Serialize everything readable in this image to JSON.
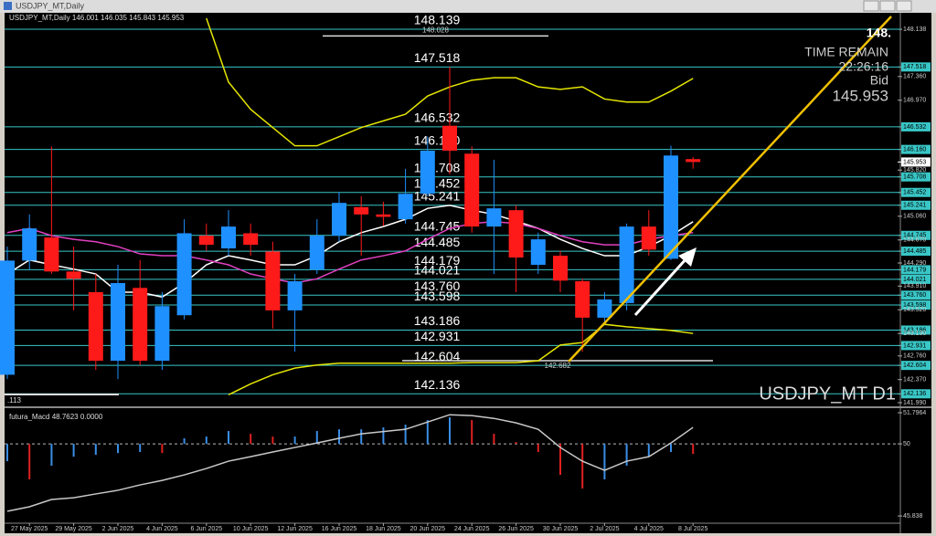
{
  "window": {
    "title": "USDJPY_MT,Daily"
  },
  "chart_data": [
    {
      "type": "candlestick",
      "title": "USDJPY_MT,Daily 146.001 146.035 145.843 145.953",
      "categories": [
        null,
        "27 May 2025",
        null,
        "29 May 2025",
        null,
        "2 Jun 2025",
        null,
        "4 Jun 2025",
        null,
        "6 Jun 2025",
        null,
        "10 Jun 2025",
        null,
        "12 Jun 2025",
        null,
        "16 Jun 2025",
        null,
        "18 Jun 2025",
        null,
        "20 Jun 2025",
        null,
        "24 Jun 2025",
        null,
        "26 Jun 2025",
        null,
        "30 Jun 2025",
        null,
        "2 Jul 2025",
        null,
        "4 Jul 2025",
        null,
        "8 Jul 2025"
      ],
      "open": [
        142.45,
        144.33,
        144.71,
        144.15,
        143.81,
        142.68,
        143.88,
        142.68,
        143.43,
        144.74,
        144.53,
        144.78,
        144.48,
        143.51,
        144.18,
        144.74,
        145.21,
        145.09,
        145.01,
        145.43,
        146.55,
        146.09,
        144.89,
        145.16,
        144.26,
        144.41,
        143.99,
        143.39,
        143.63,
        144.89,
        144.36,
        146.001
      ],
      "high": [
        144.56,
        145.09,
        146.21,
        144.56,
        144.11,
        144.26,
        144.34,
        143.81,
        145.01,
        144.94,
        145.16,
        144.94,
        144.64,
        144.11,
        145.01,
        145.46,
        145.39,
        145.3,
        145.84,
        146.37,
        147.52,
        146.21,
        145.99,
        145.24,
        144.79,
        144.49,
        144.03,
        143.81,
        144.94,
        145.16,
        146.22,
        146.035
      ],
      "low": [
        142.38,
        144.18,
        144.11,
        143.51,
        142.53,
        142.38,
        142.61,
        142.53,
        143.36,
        144.49,
        144.41,
        144.41,
        143.21,
        142.83,
        144.11,
        144.64,
        144.41,
        144.9,
        144.94,
        145.39,
        145.75,
        144.79,
        144.11,
        143.81,
        144.11,
        143.81,
        142.83,
        143.28,
        143.51,
        144.41,
        144.34,
        145.843
      ],
      "close": [
        144.33,
        144.86,
        144.15,
        144.03,
        142.68,
        143.96,
        142.68,
        143.58,
        144.78,
        144.59,
        144.89,
        144.59,
        143.51,
        143.99,
        144.74,
        145.28,
        145.09,
        145.05,
        145.43,
        146.14,
        146.14,
        144.89,
        145.19,
        144.38,
        144.68,
        144.0,
        143.39,
        143.69,
        144.89,
        144.51,
        146.06,
        145.953
      ],
      "up_color": "#1e90ff",
      "down_color": "#ff1a1a",
      "series": [
        {
          "name": "MA white",
          "color": "#ffffff",
          "values": [
            144.11,
            144.34,
            144.26,
            144.19,
            144.11,
            143.81,
            143.81,
            143.73,
            143.96,
            144.26,
            144.41,
            144.34,
            144.26,
            144.26,
            144.41,
            144.64,
            144.79,
            144.89,
            145.01,
            145.19,
            145.24,
            145.16,
            145.09,
            144.98,
            144.86,
            144.68,
            144.53,
            144.41,
            144.41,
            144.56,
            144.74,
            144.97
          ]
        },
        {
          "name": "MA magenta",
          "color": "#e040c0",
          "values": [
            144.79,
            144.86,
            144.74,
            144.68,
            144.64,
            144.56,
            144.44,
            144.41,
            144.41,
            144.34,
            144.26,
            144.11,
            144.03,
            143.96,
            144.03,
            144.19,
            144.34,
            144.41,
            144.49,
            144.68,
            144.86,
            144.94,
            144.97,
            144.94,
            144.86,
            144.74,
            144.64,
            144.59,
            144.59,
            144.68,
            144.74,
            144.79
          ]
        },
        {
          "name": "Upper band",
          "color": "#e6e600",
          "values": [
            null,
            null,
            null,
            null,
            null,
            null,
            null,
            null,
            null,
            148.32,
            147.27,
            146.82,
            146.52,
            146.22,
            146.22,
            146.37,
            146.52,
            146.63,
            146.74,
            147.04,
            147.19,
            147.3,
            147.34,
            147.34,
            147.19,
            147.15,
            147.19,
            146.99,
            146.94,
            146.94,
            147.12,
            147.33
          ]
        },
        {
          "name": "Lower band",
          "color": "#e6e600",
          "values": [
            null,
            null,
            null,
            null,
            null,
            null,
            null,
            null,
            null,
            null,
            142.12,
            142.3,
            142.45,
            142.56,
            142.61,
            142.64,
            142.64,
            142.64,
            142.64,
            142.64,
            142.64,
            142.65,
            142.65,
            142.65,
            142.68,
            142.94,
            142.98,
            143.28,
            143.24,
            143.21,
            143.18,
            143.13
          ]
        }
      ],
      "levels": [
        148.139,
        147.518,
        146.532,
        {
          "value": 146.16,
          "label": "146.160"
        },
        145.708,
        145.452,
        145.241,
        144.745,
        144.485,
        144.179,
        144.021,
        {
          "value": 143.76,
          "label": "143.760"
        },
        143.598,
        143.186,
        142.931,
        142.604,
        142.136
      ],
      "level_color": "#39c6c6",
      "hlines": [
        148.028,
        142.682
      ],
      "last": 145.953,
      "ylim": [
        141.93,
        148.35
      ],
      "yticks": [
        148.138,
        147.518,
        {
          "value": 147.36,
          "label": "147.360"
        },
        {
          "value": 146.97,
          "label": "146.970"
        },
        146.532,
        {
          "value": 146.16,
          "label": "146.160"
        },
        {
          "value": 145.82,
          "label": "145.820"
        },
        145.708,
        145.452,
        145.241,
        {
          "value": 145.06,
          "label": "145.060"
        },
        144.745,
        {
          "value": 144.67,
          "label": "144.670"
        },
        144.485,
        {
          "value": 144.29,
          "label": "144.290"
        },
        144.179,
        144.021,
        {
          "value": 143.91,
          "label": "143.910"
        },
        {
          "value": 143.76,
          "label": "143.760"
        },
        143.598,
        {
          "value": 143.52,
          "label": "143.520"
        },
        143.186,
        {
          "value": 143.13,
          "label": "143.130"
        },
        142.931,
        {
          "value": 142.76,
          "label": "142.760"
        },
        142.604,
        {
          "value": 142.37,
          "label": "142.370"
        },
        142.136,
        {
          "value": 141.99,
          "label": "141.990"
        }
      ],
      "corner_texts": [
        "148.",
        "TIME REMAIN",
        "22:26:16",
        "Bid"
      ],
      "symbol_label": "USDJPY_MT D1",
      "left_label": ".113"
    },
    {
      "type": "histogram",
      "title": "futura_Macd 48.7623 0.0000",
      "base": 50,
      "values": [
        49.0,
        47.95,
        48.74,
        49.26,
        49.37,
        49.47,
        49.53,
        49.47,
        50.32,
        50.42,
        50.74,
        50.58,
        50.42,
        50.42,
        50.74,
        50.84,
        50.84,
        50.95,
        51.11,
        51.37,
        51.53,
        51.37,
        50.58,
        50.1,
        49.53,
        48.21,
        47.42,
        47.95,
        48.74,
        49.26,
        49.53,
        49.42
      ],
      "up_color": "#3a8ee6",
      "down_color": "#e02020",
      "series": [
        {
          "name": "Signal",
          "color": "#c8c8c8",
          "values": [
            46.11,
            46.37,
            46.79,
            46.89,
            47.11,
            47.32,
            47.63,
            47.89,
            48.21,
            48.58,
            49.0,
            49.26,
            49.53,
            49.79,
            50.05,
            50.32,
            50.58,
            50.71,
            50.84,
            51.26,
            51.68,
            51.63,
            51.47,
            51.21,
            50.84,
            49.79,
            49.0,
            48.47,
            49.0,
            49.26,
            50.05,
            50.95
          ]
        }
      ],
      "ylim": [
        45.42,
        52.06
      ],
      "yticks": [
        51.7964,
        50,
        45.838
      ]
    }
  ]
}
